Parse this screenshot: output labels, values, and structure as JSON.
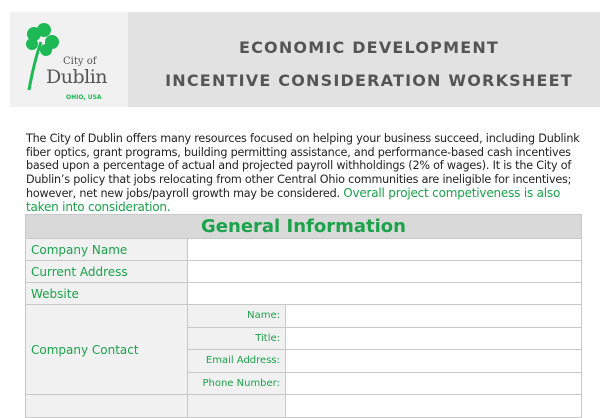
{
  "header": {
    "logo": {
      "city_of": "City of",
      "dublin": "Dublin",
      "location": "OHIO, USA"
    },
    "title_line1": "ECONOMIC DEVELOPMENT",
    "title_line2": "INCENTIVE CONSIDERATION WORKSHEET"
  },
  "intro": {
    "text": "The City of Dublin offers many resources focused on helping your business succeed, including Dublink fiber optics, grant programs, building permitting assistance, and performance-based cash incentives based upon a percentage of actual and projected payroll withholdings (2% of wages). It is the City of Dublin’s policy that jobs relocating from other Central Ohio communities are ineligible for incentives; however, net new jobs/payroll growth may be considered. ",
    "highlight": "Overall project competiveness is also taken into consideration."
  },
  "form": {
    "section_title": "General Information",
    "fields": [
      {
        "label": "Company Name",
        "value": ""
      },
      {
        "label": "Current Address",
        "value": ""
      },
      {
        "label": "Website",
        "value": ""
      }
    ],
    "contact": {
      "label": "Company Contact",
      "subfields": [
        {
          "label": "Name:",
          "value": ""
        },
        {
          "label": "Title:",
          "value": ""
        },
        {
          "label": "Email Address:",
          "value": ""
        },
        {
          "label": "Phone Number:",
          "value": ""
        }
      ]
    }
  },
  "colors": {
    "brand_green": "#1aa34a",
    "banner_gray": "#e2e2e2"
  }
}
